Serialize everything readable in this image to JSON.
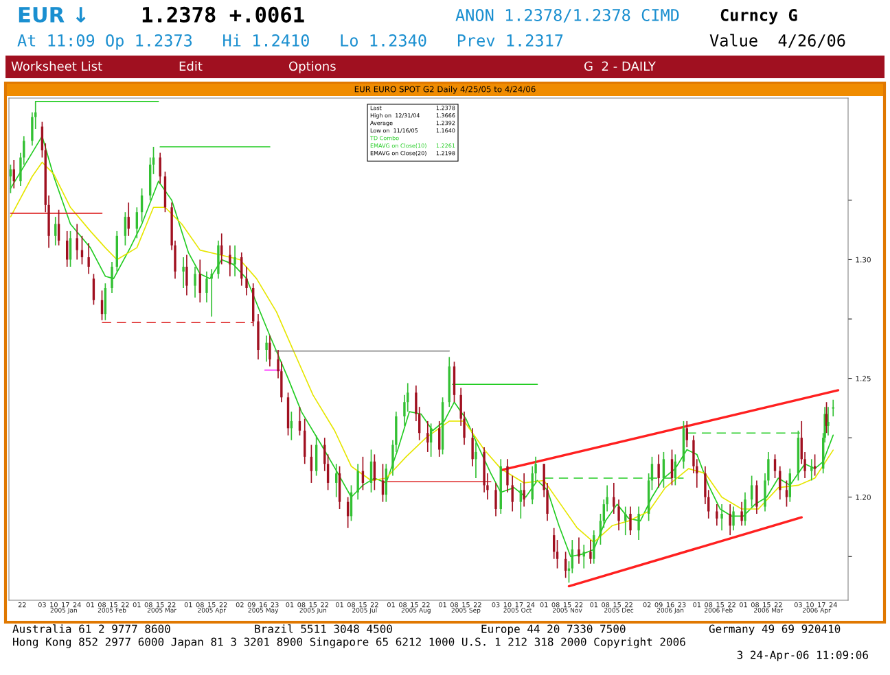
{
  "chart_data": {
    "type": "candlestick",
    "title": "EUR EURO SPOT G2 Daily 4/25/05 to 4/24/06",
    "x": [
      "2004-12-15",
      "2004-12-17",
      "2004-12-21",
      "2004-12-23",
      "2004-12-28",
      "2004-12-30",
      "2005-01-03",
      "2005-01-05",
      "2005-01-07",
      "2005-01-11",
      "2005-01-13",
      "2005-01-18",
      "2005-01-20",
      "2005-01-24",
      "2005-01-27",
      "2005-01-31",
      "2005-02-03",
      "2005-02-08",
      "2005-02-10",
      "2005-02-14",
      "2005-02-17",
      "2005-02-22",
      "2005-02-24",
      "2005-03-01",
      "2005-03-04",
      "2005-03-09",
      "2005-03-11",
      "2005-03-15",
      "2005-03-18",
      "2005-03-22",
      "2005-03-24",
      "2005-03-29",
      "2005-03-31",
      "2005-04-05",
      "2005-04-08",
      "2005-04-12",
      "2005-04-15",
      "2005-04-19",
      "2005-04-21",
      "2005-04-26",
      "2005-04-29",
      "2005-05-03",
      "2005-05-06",
      "2005-05-10",
      "2005-05-13",
      "2005-05-18",
      "2005-05-20",
      "2005-05-25",
      "2005-05-27",
      "2005-05-31",
      "2005-06-02",
      "2005-06-07",
      "2005-06-10",
      "2005-06-14",
      "2005-06-17",
      "2005-06-22",
      "2005-06-24",
      "2005-06-29",
      "2005-07-01",
      "2005-07-06",
      "2005-07-08",
      "2005-07-12",
      "2005-07-15",
      "2005-07-20",
      "2005-07-22",
      "2005-07-27",
      "2005-07-29",
      "2005-08-02",
      "2005-08-04",
      "2005-08-09",
      "2005-08-11",
      "2005-08-16",
      "2005-08-18",
      "2005-08-23",
      "2005-08-25",
      "2005-08-30",
      "2005-09-01",
      "2005-09-05",
      "2005-09-08",
      "2005-09-12",
      "2005-09-14",
      "2005-09-19",
      "2005-09-21",
      "2005-09-26",
      "2005-09-28",
      "2005-10-03",
      "2005-10-06",
      "2005-10-10",
      "2005-10-13",
      "2005-10-18",
      "2005-10-20",
      "2005-10-25",
      "2005-10-27",
      "2005-11-01",
      "2005-11-03",
      "2005-11-07",
      "2005-11-09",
      "2005-11-14",
      "2005-11-16",
      "2005-11-18",
      "2005-11-22",
      "2005-11-25",
      "2005-11-29",
      "2005-12-01",
      "2005-12-05",
      "2005-12-07",
      "2005-12-09",
      "2005-12-13",
      "2005-12-16",
      "2005-12-20",
      "2005-12-23",
      "2005-12-28",
      "2006-01-03",
      "2006-01-05",
      "2006-01-09",
      "2006-01-12",
      "2006-01-17",
      "2006-01-19",
      "2006-01-24",
      "2006-01-26",
      "2006-01-30",
      "2006-02-01",
      "2006-02-06",
      "2006-02-08",
      "2006-02-13",
      "2006-02-16",
      "2006-02-21",
      "2006-02-23",
      "2006-02-28",
      "2006-03-02",
      "2006-03-06",
      "2006-03-09",
      "2006-03-14",
      "2006-03-16",
      "2006-03-20",
      "2006-03-23",
      "2006-03-27",
      "2006-03-29",
      "2006-04-03",
      "2006-04-05",
      "2006-04-07",
      "2006-04-11",
      "2006-04-13",
      "2006-04-18",
      "2006-04-19",
      "2006-04-20",
      "2006-04-21",
      "2006-04-24"
    ],
    "ohlc": [
      [
        1.335,
        1.34,
        1.328,
        1.338
      ],
      [
        1.338,
        1.342,
        1.33,
        1.333
      ],
      [
        1.333,
        1.345,
        1.331,
        1.343
      ],
      [
        1.343,
        1.352,
        1.34,
        1.35
      ],
      [
        1.35,
        1.362,
        1.348,
        1.36
      ],
      [
        1.36,
        1.3666,
        1.355,
        1.362
      ],
      [
        1.356,
        1.358,
        1.343,
        1.346
      ],
      [
        1.346,
        1.349,
        1.32,
        1.323
      ],
      [
        1.323,
        1.327,
        1.305,
        1.31
      ],
      [
        1.31,
        1.318,
        1.306,
        1.315
      ],
      [
        1.315,
        1.321,
        1.306,
        1.308
      ],
      [
        1.308,
        1.312,
        1.297,
        1.3
      ],
      [
        1.3,
        1.312,
        1.297,
        1.309
      ],
      [
        1.309,
        1.315,
        1.3,
        1.304
      ],
      [
        1.304,
        1.31,
        1.298,
        1.301
      ],
      [
        1.301,
        1.307,
        1.294,
        1.297
      ],
      [
        1.292,
        1.294,
        1.281,
        1.283
      ],
      [
        1.283,
        1.287,
        1.2745,
        1.277
      ],
      [
        1.277,
        1.29,
        1.2745,
        1.288
      ],
      [
        1.288,
        1.299,
        1.286,
        1.297
      ],
      [
        1.297,
        1.312,
        1.295,
        1.31
      ],
      [
        1.31,
        1.32,
        1.306,
        1.318
      ],
      [
        1.318,
        1.324,
        1.31,
        1.313
      ],
      [
        1.313,
        1.322,
        1.309,
        1.32
      ],
      [
        1.32,
        1.33,
        1.316,
        1.327
      ],
      [
        1.327,
        1.343,
        1.325,
        1.34
      ],
      [
        1.34,
        1.3475,
        1.336,
        1.343
      ],
      [
        1.343,
        1.345,
        1.332,
        1.335
      ],
      [
        1.335,
        1.337,
        1.32,
        1.322
      ],
      [
        1.322,
        1.324,
        1.304,
        1.306
      ],
      [
        1.306,
        1.308,
        1.292,
        1.295
      ],
      [
        1.295,
        1.301,
        1.288,
        1.297
      ],
      [
        1.297,
        1.302,
        1.285,
        1.289
      ],
      [
        1.289,
        1.297,
        1.284,
        1.294
      ],
      [
        1.294,
        1.3,
        1.282,
        1.286
      ],
      [
        1.286,
        1.295,
        1.282,
        1.292
      ],
      [
        1.292,
        1.296,
        1.276,
        1.294
      ],
      [
        1.294,
        1.308,
        1.292,
        1.306
      ],
      [
        1.306,
        1.311,
        1.298,
        1.302
      ],
      [
        1.302,
        1.306,
        1.293,
        1.298
      ],
      [
        1.298,
        1.306,
        1.293,
        1.301
      ],
      [
        1.301,
        1.303,
        1.289,
        1.292
      ],
      [
        1.292,
        1.297,
        1.285,
        1.288
      ],
      [
        1.288,
        1.29,
        1.272,
        1.274
      ],
      [
        1.274,
        1.277,
        1.258,
        1.262
      ],
      [
        1.262,
        1.268,
        1.257,
        1.265
      ],
      [
        1.265,
        1.268,
        1.255,
        1.258
      ],
      [
        1.258,
        1.262,
        1.25,
        1.253
      ],
      [
        1.253,
        1.257,
        1.24,
        1.242
      ],
      [
        1.242,
        1.244,
        1.226,
        1.229
      ],
      [
        1.229,
        1.236,
        1.224,
        1.232
      ],
      [
        1.232,
        1.238,
        1.226,
        1.228
      ],
      [
        1.228,
        1.233,
        1.214,
        1.217
      ],
      [
        1.217,
        1.222,
        1.206,
        1.211
      ],
      [
        1.211,
        1.226,
        1.209,
        1.222
      ],
      [
        1.222,
        1.225,
        1.211,
        1.214
      ],
      [
        1.214,
        1.218,
        1.203,
        1.206
      ],
      [
        1.206,
        1.214,
        1.2,
        1.21
      ],
      [
        1.21,
        1.213,
        1.195,
        1.198
      ],
      [
        1.198,
        1.2,
        1.187,
        1.192
      ],
      [
        1.192,
        1.205,
        1.19,
        1.202
      ],
      [
        1.202,
        1.214,
        1.199,
        1.211
      ],
      [
        1.211,
        1.217,
        1.203,
        1.206
      ],
      [
        1.206,
        1.22,
        1.202,
        1.215
      ],
      [
        1.215,
        1.218,
        1.203,
        1.207
      ],
      [
        1.207,
        1.214,
        1.198,
        1.201
      ],
      [
        1.201,
        1.214,
        1.198,
        1.212
      ],
      [
        1.212,
        1.224,
        1.209,
        1.222
      ],
      [
        1.222,
        1.236,
        1.219,
        1.234
      ],
      [
        1.234,
        1.243,
        1.23,
        1.24
      ],
      [
        1.24,
        1.248,
        1.236,
        1.244
      ],
      [
        1.244,
        1.247,
        1.232,
        1.235
      ],
      [
        1.235,
        1.238,
        1.224,
        1.227
      ],
      [
        1.227,
        1.232,
        1.219,
        1.223
      ],
      [
        1.223,
        1.231,
        1.217,
        1.229
      ],
      [
        1.229,
        1.232,
        1.217,
        1.22
      ],
      [
        1.22,
        1.242,
        1.218,
        1.24
      ],
      [
        1.24,
        1.259,
        1.238,
        1.255
      ],
      [
        1.255,
        1.257,
        1.24,
        1.243
      ],
      [
        1.243,
        1.246,
        1.23,
        1.233
      ],
      [
        1.233,
        1.236,
        1.222,
        1.225
      ],
      [
        1.225,
        1.229,
        1.213,
        1.216
      ],
      [
        1.216,
        1.223,
        1.208,
        1.219
      ],
      [
        1.219,
        1.221,
        1.202,
        1.205
      ],
      [
        1.205,
        1.21,
        1.199,
        1.203
      ],
      [
        1.203,
        1.206,
        1.192,
        1.195
      ],
      [
        1.195,
        1.216,
        1.193,
        1.213
      ],
      [
        1.213,
        1.216,
        1.202,
        1.205
      ],
      [
        1.205,
        1.209,
        1.194,
        1.198
      ],
      [
        1.198,
        1.206,
        1.191,
        1.203
      ],
      [
        1.203,
        1.21,
        1.196,
        1.199
      ],
      [
        1.199,
        1.213,
        1.197,
        1.21
      ],
      [
        1.21,
        1.217,
        1.206,
        1.214
      ],
      [
        1.214,
        1.214,
        1.2,
        1.203
      ],
      [
        1.203,
        1.206,
        1.19,
        1.193
      ],
      [
        1.184,
        1.187,
        1.174,
        1.177
      ],
      [
        1.177,
        1.182,
        1.17,
        1.174
      ],
      [
        1.174,
        1.177,
        1.166,
        1.169
      ],
      [
        1.169,
        1.173,
        1.164,
        1.17
      ],
      [
        1.17,
        1.182,
        1.168,
        1.178
      ],
      [
        1.178,
        1.183,
        1.172,
        1.175
      ],
      [
        1.175,
        1.18,
        1.17,
        1.177
      ],
      [
        1.177,
        1.182,
        1.172,
        1.174
      ],
      [
        1.174,
        1.186,
        1.172,
        1.184
      ],
      [
        1.184,
        1.193,
        1.18,
        1.19
      ],
      [
        1.19,
        1.199,
        1.187,
        1.197
      ],
      [
        1.197,
        1.205,
        1.194,
        1.2
      ],
      [
        1.2,
        1.206,
        1.193,
        1.196
      ],
      [
        1.196,
        1.199,
        1.186,
        1.19
      ],
      [
        1.19,
        1.196,
        1.184,
        1.193
      ],
      [
        1.193,
        1.196,
        1.184,
        1.186
      ],
      [
        1.186,
        1.196,
        1.182,
        1.193
      ],
      [
        1.193,
        1.21,
        1.19,
        1.207
      ],
      [
        1.207,
        1.217,
        1.203,
        1.214
      ],
      [
        1.214,
        1.218,
        1.204,
        1.208
      ],
      [
        1.208,
        1.219,
        1.204,
        1.216
      ],
      [
        1.216,
        1.22,
        1.205,
        1.208
      ],
      [
        1.208,
        1.218,
        1.205,
        1.215
      ],
      [
        1.215,
        1.232,
        1.212,
        1.229
      ],
      [
        1.229,
        1.232,
        1.221,
        1.224
      ],
      [
        1.224,
        1.226,
        1.21,
        1.213
      ],
      [
        1.213,
        1.216,
        1.204,
        1.21
      ],
      [
        1.21,
        1.213,
        1.197,
        1.2
      ],
      [
        1.2,
        1.203,
        1.191,
        1.194
      ],
      [
        1.194,
        1.197,
        1.188,
        1.191
      ],
      [
        1.191,
        1.197,
        1.186,
        1.193
      ],
      [
        1.193,
        1.197,
        1.184,
        1.188
      ],
      [
        1.188,
        1.196,
        1.186,
        1.194
      ],
      [
        1.194,
        1.198,
        1.188,
        1.19
      ],
      [
        1.19,
        1.202,
        1.188,
        1.199
      ],
      [
        1.199,
        1.209,
        1.196,
        1.205
      ],
      [
        1.205,
        1.207,
        1.193,
        1.196
      ],
      [
        1.196,
        1.21,
        1.194,
        1.207
      ],
      [
        1.207,
        1.219,
        1.205,
        1.216
      ],
      [
        1.216,
        1.218,
        1.208,
        1.211
      ],
      [
        1.211,
        1.213,
        1.199,
        1.203
      ],
      [
        1.203,
        1.207,
        1.196,
        1.2
      ],
      [
        1.2,
        1.212,
        1.198,
        1.21
      ],
      [
        1.21,
        1.228,
        1.207,
        1.225
      ],
      [
        1.225,
        1.232,
        1.214,
        1.216
      ],
      [
        1.216,
        1.219,
        1.208,
        1.211
      ],
      [
        1.211,
        1.216,
        1.207,
        1.213
      ],
      [
        1.213,
        1.218,
        1.209,
        1.212
      ],
      [
        1.212,
        1.227,
        1.21,
        1.225
      ],
      [
        1.225,
        1.238,
        1.223,
        1.235
      ],
      [
        1.235,
        1.24,
        1.227,
        1.23
      ],
      [
        1.23,
        1.238,
        1.226,
        1.2317
      ],
      [
        1.2373,
        1.241,
        1.234,
        1.2378
      ]
    ],
    "series": [
      {
        "type": "line",
        "color": "#22cc22",
        "line_style": "solid",
        "x": [
          "2004-12-15",
          "2004-12-28",
          "2005-01-03",
          "2005-01-10",
          "2005-01-20",
          "2005-02-01",
          "2005-02-10",
          "2005-02-15",
          "2005-02-25",
          "2005-03-04",
          "2005-03-14",
          "2005-03-22",
          "2005-04-01",
          "2005-04-08",
          "2005-04-14",
          "2005-04-21",
          "2005-04-28",
          "2005-05-06",
          "2005-05-13",
          "2005-05-20",
          "2005-05-31",
          "2005-06-08",
          "2005-06-20",
          "2005-06-30",
          "2005-07-08",
          "2005-07-15",
          "2005-07-22",
          "2005-07-29",
          "2005-08-05",
          "2005-08-12",
          "2005-08-19",
          "2005-08-26",
          "2005-09-02",
          "2005-09-08",
          "2005-09-15",
          "2005-09-22",
          "2005-09-30",
          "2005-10-06",
          "2005-10-14",
          "2005-10-21",
          "2005-10-28",
          "2005-11-03",
          "2005-11-10",
          "2005-11-17",
          "2005-11-24",
          "2005-12-01",
          "2005-12-08",
          "2005-12-15",
          "2005-12-22",
          "2005-12-29",
          "2006-01-05",
          "2006-01-12",
          "2006-01-19",
          "2006-01-26",
          "2006-02-01",
          "2006-02-08",
          "2006-02-15",
          "2006-02-22",
          "2006-03-01",
          "2006-03-08",
          "2006-03-15",
          "2006-03-22",
          "2006-03-29",
          "2006-04-03",
          "2006-04-07",
          "2006-04-13",
          "2006-04-18",
          "2006-04-24"
        ],
        "values": [
          1.33,
          1.345,
          1.352,
          1.335,
          1.315,
          1.305,
          1.293,
          1.292,
          1.305,
          1.315,
          1.333,
          1.325,
          1.303,
          1.294,
          1.292,
          1.3,
          1.298,
          1.292,
          1.28,
          1.268,
          1.25,
          1.236,
          1.222,
          1.21,
          1.2,
          1.205,
          1.208,
          1.206,
          1.22,
          1.236,
          1.235,
          1.228,
          1.232,
          1.24,
          1.233,
          1.222,
          1.21,
          1.202,
          1.204,
          1.2,
          1.207,
          1.203,
          1.188,
          1.175,
          1.176,
          1.178,
          1.19,
          1.197,
          1.191,
          1.19,
          1.2,
          1.208,
          1.212,
          1.22,
          1.218,
          1.205,
          1.195,
          1.192,
          1.192,
          1.197,
          1.2,
          1.208,
          1.205,
          1.21,
          1.214,
          1.212,
          1.215,
          1.2261
        ]
      },
      {
        "type": "line",
        "color": "#e6e600",
        "line_style": "solid",
        "x": [
          "2004-12-15",
          "2004-12-28",
          "2005-01-03",
          "2005-01-10",
          "2005-01-20",
          "2005-02-01",
          "2005-02-10",
          "2005-02-17",
          "2005-03-01",
          "2005-03-11",
          "2005-03-18",
          "2005-03-28",
          "2005-04-08",
          "2005-04-20",
          "2005-05-02",
          "2005-05-12",
          "2005-05-24",
          "2005-06-03",
          "2005-06-15",
          "2005-06-28",
          "2005-07-08",
          "2005-07-20",
          "2005-07-29",
          "2005-08-10",
          "2005-08-22",
          "2005-09-05",
          "2005-09-14",
          "2005-09-26",
          "2005-10-06",
          "2005-10-20",
          "2005-11-01",
          "2005-11-10",
          "2005-11-21",
          "2005-12-01",
          "2005-12-12",
          "2005-12-22",
          "2006-01-03",
          "2006-01-13",
          "2006-01-27",
          "2006-02-06",
          "2006-02-16",
          "2006-02-28",
          "2006-03-10",
          "2006-03-22",
          "2006-04-03",
          "2006-04-13",
          "2006-04-24"
        ],
        "values": [
          1.318,
          1.335,
          1.341,
          1.336,
          1.322,
          1.312,
          1.305,
          1.3,
          1.305,
          1.322,
          1.322,
          1.315,
          1.304,
          1.302,
          1.3,
          1.292,
          1.278,
          1.262,
          1.243,
          1.228,
          1.213,
          1.207,
          1.208,
          1.217,
          1.225,
          1.232,
          1.232,
          1.22,
          1.212,
          1.206,
          1.207,
          1.198,
          1.187,
          1.181,
          1.188,
          1.19,
          1.194,
          1.204,
          1.212,
          1.21,
          1.2,
          1.195,
          1.195,
          1.204,
          1.205,
          1.208,
          1.2198
        ]
      },
      {
        "type": "line",
        "color": "#22cc22",
        "line_style": "solid",
        "x": [
          "2004-12-30",
          "2005-03-14"
        ],
        "values": [
          1.3666,
          1.3666
        ]
      },
      {
        "type": "line",
        "color": "#22cc22",
        "line_style": "solid",
        "x": [
          "2005-03-15",
          "2005-05-20"
        ],
        "values": [
          1.3475,
          1.3475
        ]
      },
      {
        "type": "line",
        "color": "#dd2222",
        "line_style": "solid",
        "x": [
          "2004-12-15",
          "2005-02-08"
        ],
        "values": [
          1.3195,
          1.3195
        ]
      },
      {
        "type": "line",
        "color": "#dd2222",
        "line_style": "dashed",
        "x": [
          "2005-02-08",
          "2005-05-10"
        ],
        "values": [
          1.2735,
          1.2735
        ]
      },
      {
        "type": "line",
        "color": "#808080",
        "line_style": "solid",
        "x": [
          "2005-05-23",
          "2005-09-05"
        ],
        "values": [
          1.2615,
          1.2615
        ]
      },
      {
        "type": "line",
        "color": "#ff00ff",
        "line_style": "solid",
        "x": [
          "2005-05-17",
          "2005-05-27"
        ],
        "values": [
          1.2535,
          1.2535
        ]
      },
      {
        "type": "line",
        "color": "#22cc22",
        "line_style": "solid",
        "x": [
          "2005-09-07",
          "2005-10-28"
        ],
        "values": [
          1.2475,
          1.2475
        ]
      },
      {
        "type": "line",
        "color": "#dd2222",
        "line_style": "solid",
        "x": [
          "2005-07-27",
          "2005-09-30"
        ],
        "values": [
          1.2065,
          1.2065
        ]
      },
      {
        "type": "line",
        "color": "#22cc22",
        "line_style": "dashed",
        "x": [
          "2005-11-01",
          "2006-01-24"
        ],
        "values": [
          1.208,
          1.208
        ]
      },
      {
        "type": "line",
        "color": "#22cc22",
        "line_style": "dashed",
        "x": [
          "2006-01-26",
          "2006-04-04"
        ],
        "values": [
          1.227,
          1.227
        ]
      },
      {
        "type": "line",
        "color": "#ff2020",
        "line_style": "solid",
        "x": [
          "2005-10-07",
          "2006-04-27"
        ],
        "values": [
          1.2115,
          1.245
        ]
      },
      {
        "type": "line",
        "color": "#ff2020",
        "line_style": "solid",
        "x": [
          "2005-11-16",
          "2006-04-05"
        ],
        "values": [
          1.1625,
          1.1915
        ]
      }
    ],
    "xlim": [
      "2004-12-14",
      "2006-05-03"
    ],
    "ylim": [
      1.1566,
      1.368
    ],
    "yticks": [
      {
        "value": 1.175,
        "label": null
      },
      {
        "value": 1.2,
        "label": "1.20"
      },
      {
        "value": 1.225,
        "label": null
      },
      {
        "value": 1.25,
        "label": "1.25"
      },
      {
        "value": 1.275,
        "label": null
      },
      {
        "value": 1.3,
        "label": "1.30"
      },
      {
        "value": 1.325,
        "label": null
      }
    ],
    "xticks": [
      {
        "value": "2004-12-22",
        "label": "22"
      },
      {
        "value": "2005-01-03",
        "label": "03"
      },
      {
        "value": "2005-01-10",
        "label": "10"
      },
      {
        "value": "2005-01-17",
        "label": "17"
      },
      {
        "value": "2005-01-24",
        "label": "24"
      },
      {
        "value": "2005-02-01",
        "label": "01"
      },
      {
        "value": "2005-02-08",
        "label": "08"
      },
      {
        "value": "2005-02-15",
        "label": "15"
      },
      {
        "value": "2005-02-22",
        "label": "22"
      },
      {
        "value": "2005-03-01",
        "label": "01"
      },
      {
        "value": "2005-03-08",
        "label": "08"
      },
      {
        "value": "2005-03-15",
        "label": "15"
      },
      {
        "value": "2005-03-22",
        "label": "22"
      },
      {
        "value": "2005-04-01",
        "label": "01"
      },
      {
        "value": "2005-04-08",
        "label": "08"
      },
      {
        "value": "2005-04-15",
        "label": "15"
      },
      {
        "value": "2005-04-22",
        "label": "22"
      },
      {
        "value": "2005-05-02",
        "label": "02"
      },
      {
        "value": "2005-05-09",
        "label": "09"
      },
      {
        "value": "2005-05-16",
        "label": "16"
      },
      {
        "value": "2005-05-23",
        "label": "23"
      },
      {
        "value": "2005-06-01",
        "label": "01"
      },
      {
        "value": "2005-06-08",
        "label": "08"
      },
      {
        "value": "2005-06-15",
        "label": "15"
      },
      {
        "value": "2005-06-22",
        "label": "22"
      },
      {
        "value": "2005-07-01",
        "label": "01"
      },
      {
        "value": "2005-07-08",
        "label": "08"
      },
      {
        "value": "2005-07-15",
        "label": "15"
      },
      {
        "value": "2005-07-22",
        "label": "22"
      },
      {
        "value": "2005-08-01",
        "label": "01"
      },
      {
        "value": "2005-08-08",
        "label": "08"
      },
      {
        "value": "2005-08-15",
        "label": "15"
      },
      {
        "value": "2005-08-22",
        "label": "22"
      },
      {
        "value": "2005-09-01",
        "label": "01"
      },
      {
        "value": "2005-09-08",
        "label": "08"
      },
      {
        "value": "2005-09-15",
        "label": "15"
      },
      {
        "value": "2005-09-22",
        "label": "22"
      },
      {
        "value": "2005-10-03",
        "label": "03"
      },
      {
        "value": "2005-10-10",
        "label": "10"
      },
      {
        "value": "2005-10-17",
        "label": "17"
      },
      {
        "value": "2005-10-24",
        "label": "24"
      },
      {
        "value": "2005-11-01",
        "label": "01"
      },
      {
        "value": "2005-11-08",
        "label": "08"
      },
      {
        "value": "2005-11-15",
        "label": "15"
      },
      {
        "value": "2005-11-22",
        "label": "22"
      },
      {
        "value": "2005-12-01",
        "label": "01"
      },
      {
        "value": "2005-12-08",
        "label": "08"
      },
      {
        "value": "2005-12-15",
        "label": "15"
      },
      {
        "value": "2005-12-22",
        "label": "22"
      },
      {
        "value": "2006-01-02",
        "label": "02"
      },
      {
        "value": "2006-01-09",
        "label": "09"
      },
      {
        "value": "2006-01-16",
        "label": "16"
      },
      {
        "value": "2006-01-23",
        "label": "23"
      },
      {
        "value": "2006-02-01",
        "label": "01"
      },
      {
        "value": "2006-02-08",
        "label": "08"
      },
      {
        "value": "2006-02-15",
        "label": "15"
      },
      {
        "value": "2006-02-22",
        "label": "22"
      },
      {
        "value": "2006-03-01",
        "label": "01"
      },
      {
        "value": "2006-03-08",
        "label": "08"
      },
      {
        "value": "2006-03-15",
        "label": "15"
      },
      {
        "value": "2006-03-22",
        "label": "22"
      },
      {
        "value": "2006-04-03",
        "label": "03"
      },
      {
        "value": "2006-04-10",
        "label": "10"
      },
      {
        "value": "2006-04-17",
        "label": "17"
      },
      {
        "value": "2006-04-24",
        "label": "24"
      }
    ],
    "x2lim": [
      "2004-12-14",
      "2006-05-03"
    ],
    "x2ticks": [
      {
        "value": "2005-01-16",
        "label": "2005 Jan"
      },
      {
        "value": "2005-02-14",
        "label": "2005 Feb"
      },
      {
        "value": "2005-03-16",
        "label": "2005 Mar"
      },
      {
        "value": "2005-04-15",
        "label": "2005 Apr"
      },
      {
        "value": "2005-05-16",
        "label": "2005 May"
      },
      {
        "value": "2005-06-15",
        "label": "2005 Jun"
      },
      {
        "value": "2005-07-16",
        "label": "2005 Jul"
      },
      {
        "value": "2005-08-16",
        "label": "2005 Aug"
      },
      {
        "value": "2005-09-15",
        "label": "2005 Sep"
      },
      {
        "value": "2005-10-16",
        "label": "2005 Oct"
      },
      {
        "value": "2005-11-15",
        "label": "2005 Nov"
      },
      {
        "value": "2005-12-16",
        "label": "2005 Dec"
      },
      {
        "value": "2006-01-16",
        "label": "2006 Jan"
      },
      {
        "value": "2006-02-14",
        "label": "2006 Feb"
      },
      {
        "value": "2006-03-16",
        "label": "2006 Mar"
      },
      {
        "value": "2006-04-14",
        "label": "2006 Apr"
      }
    ],
    "annotations": [
      "EUR ↓",
      "1.2378 +.0061",
      "ANON 1.2378/1.2378 CIMD",
      "Curncy G",
      "At 11:09 Op 1.2373   Hi 1.2410   Lo 1.2340   Prev 1.2317",
      "Value  4/26/06",
      "Worksheet List",
      "Edit",
      "Options",
      "G  2 - DAILY",
      "Last",
      "1.2378",
      "High on  12/31/04",
      "1.3666",
      "Average",
      "1.2392",
      "Low on  11/16/05",
      "1.1640",
      "TD Combo",
      "EMAVG on Close(10)",
      "1.2261",
      "EMAVG on Close(20)",
      "1.2198",
      "Australia 61 2 9777 8600",
      "Brazil 5511 3048 4500",
      "Europe 44 20 7330 7500",
      "Germany 49 69 920410",
      "Hong Kong 852 2977 6000 Japan 81 3 3201 8900 Singapore 65 6212 1000 U.S. 1 212 318 2000 Copyright 2006",
      "3 24-Apr-06 11:09:06"
    ],
    "grid": false
  }
}
